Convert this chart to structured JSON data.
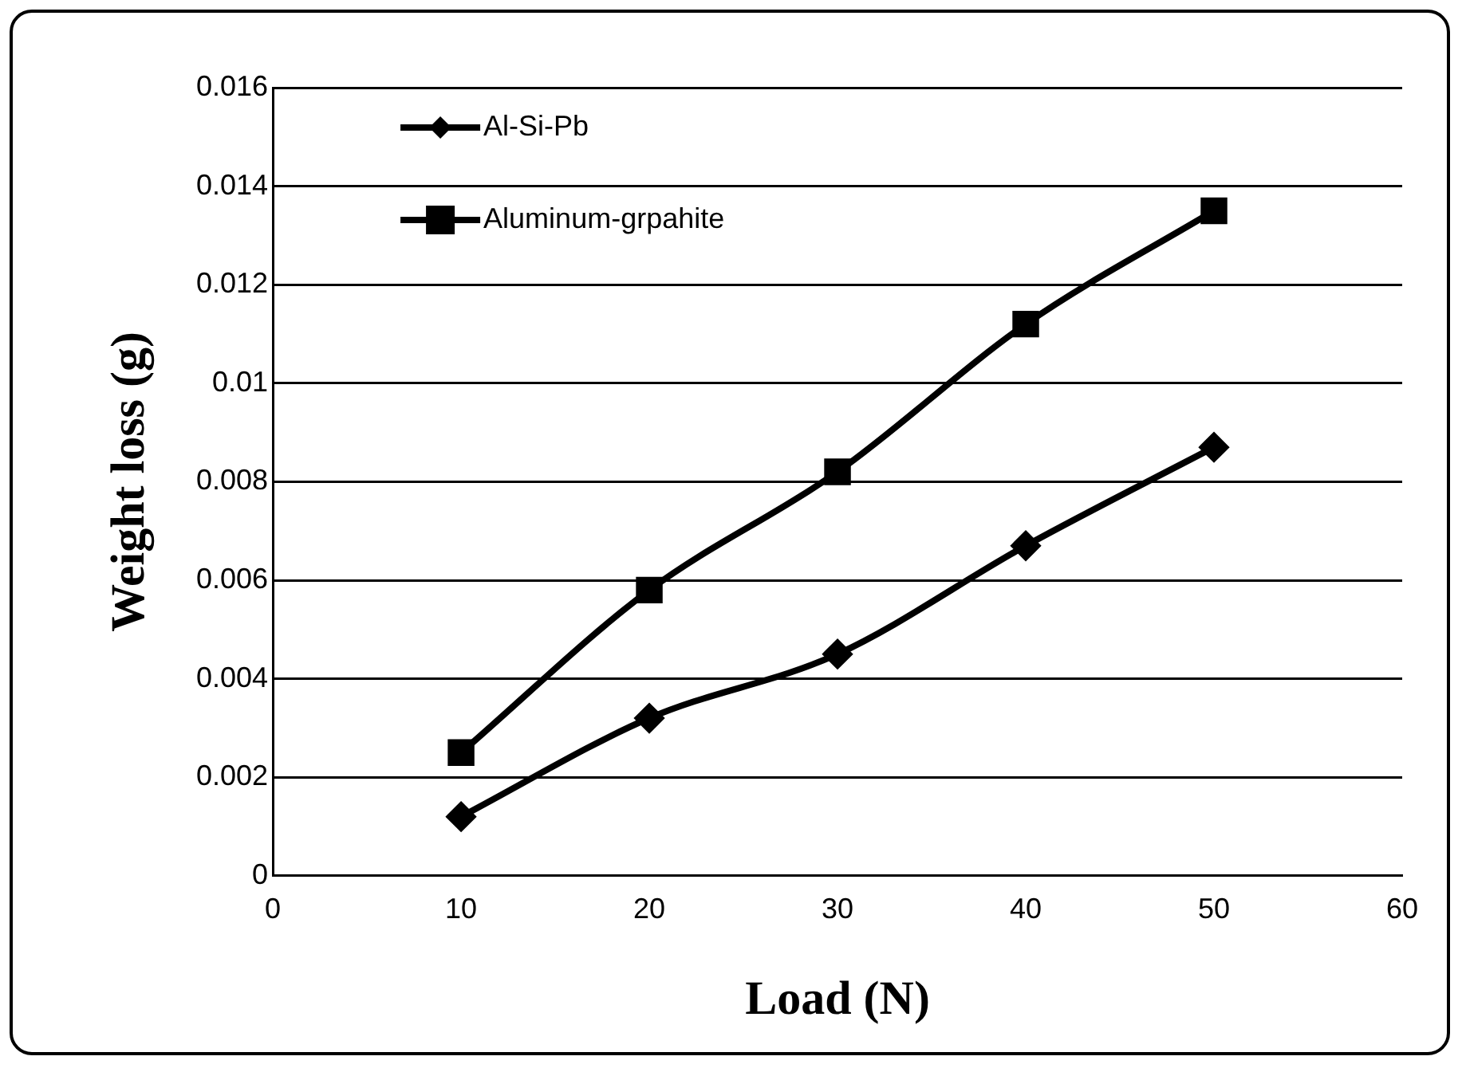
{
  "chart_data": {
    "type": "line",
    "xlabel": "Load (N)",
    "ylabel": "Weight loss (g)",
    "x": [
      10,
      20,
      30,
      40,
      50
    ],
    "series": [
      {
        "name": "Al-Si-Pb",
        "color": "#000000",
        "marker": "diamond",
        "values": [
          0.0012,
          0.0032,
          0.0045,
          0.0067,
          0.0087
        ]
      },
      {
        "name": "Aluminum-grpahite",
        "color": "#000000",
        "marker": "square",
        "values": [
          0.0025,
          0.0058,
          0.0082,
          0.0112,
          0.0135
        ]
      }
    ],
    "xlim": [
      0,
      60
    ],
    "xticks": [
      0,
      10,
      20,
      30,
      40,
      50,
      60
    ],
    "ylim": [
      0,
      0.016
    ],
    "yticks": [
      {
        "value": 0,
        "label": "0"
      },
      {
        "value": 0.002,
        "label": "0.002"
      },
      {
        "value": 0.004,
        "label": "0.004"
      },
      {
        "value": 0.006,
        "label": "0.006"
      },
      {
        "value": 0.008,
        "label": "0.008"
      },
      {
        "value": 0.01,
        "label": "0.01"
      },
      {
        "value": 0.012,
        "label": "0.012"
      },
      {
        "value": 0.014,
        "label": "0.014"
      },
      {
        "value": 0.016,
        "label": "0.016"
      }
    ],
    "grid": "y",
    "legend": "top left",
    "line_style": "solid"
  }
}
